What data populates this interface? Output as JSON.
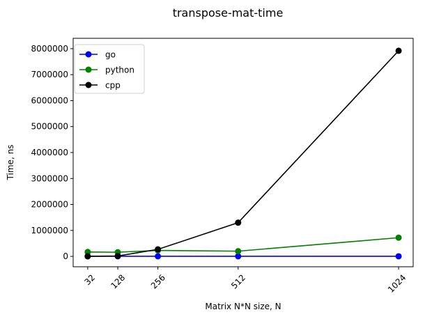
{
  "chart_data": {
    "type": "line",
    "title": "transpose-mat-time",
    "xlabel": "Matrix N*N size, N",
    "ylabel": "Time, ns",
    "x": [
      32,
      128,
      256,
      512,
      1024
    ],
    "x_ticks": [
      "32",
      "128",
      "256",
      "512",
      "1024"
    ],
    "xlim": [
      -14.4,
      1070.4
    ],
    "ylim": [
      -400000,
      8400000
    ],
    "y_ticks": [
      "0",
      "1000000",
      "2000000",
      "3000000",
      "4000000",
      "5000000",
      "6000000",
      "7000000",
      "8000000"
    ],
    "y_tick_values": [
      0,
      1000000,
      2000000,
      3000000,
      4000000,
      5000000,
      6000000,
      7000000,
      8000000
    ],
    "grid": false,
    "legend_position": "upper-left",
    "series": [
      {
        "name": "go",
        "color": "#0000ff",
        "values": [
          3000,
          3000,
          3000,
          3000,
          3000
        ]
      },
      {
        "name": "python",
        "color": "#008000",
        "values": [
          170000,
          160000,
          230000,
          200000,
          720000
        ]
      },
      {
        "name": "cpp",
        "color": "#000000",
        "values": [
          5000,
          15000,
          270000,
          1300000,
          7920000
        ]
      }
    ]
  }
}
